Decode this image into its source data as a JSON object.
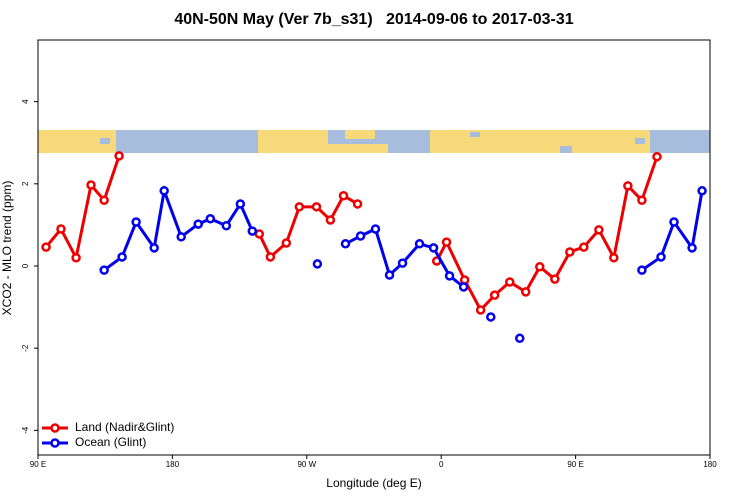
{
  "chart_data": {
    "type": "line",
    "title": "40N-50N May (Ver 7b_s31)   2014-09-06 to 2017-03-31",
    "x_label": "Longitude (deg E)",
    "y_label": "XCO2 - MLO trend (ppm)",
    "xlim": [
      90,
      540
    ],
    "xticks": [
      {
        "value": 90,
        "label": "90 E"
      },
      180,
      {
        "value": 270,
        "label": "90 W"
      },
      {
        "value": 360,
        "label": "0"
      },
      {
        "value": 450,
        "label": "90 E"
      },
      {
        "value": 540,
        "label": "180"
      }
    ],
    "ylim": [
      -4.6,
      5.5
    ],
    "yticks": [
      -4,
      -2,
      0,
      2,
      4
    ],
    "grid": false,
    "legend": "bottomleft",
    "series": [
      {
        "name": "Land (Nadir&Glint)",
        "color": "#ee0000",
        "x": [
          95.4,
          105.4,
          115.5,
          125.5,
          134.3,
          144.3,
          null,
          238.2,
          245.6,
          256.3,
          265.0,
          276.5,
          285.8,
          294.6,
          304.0,
          null,
          357.0,
          363.6,
          375.7,
          386.4,
          395.8,
          405.9,
          416.6,
          426.0,
          436.1,
          446.1,
          455.5,
          465.6,
          475.6,
          485.0,
          494.4,
          504.5
        ],
        "values": [
          0.46,
          0.9,
          0.2,
          1.97,
          1.6,
          2.68,
          null,
          0.78,
          0.22,
          0.56,
          1.44,
          1.44,
          1.12,
          1.71,
          1.51,
          null,
          0.12,
          0.58,
          -0.34,
          -1.07,
          -0.71,
          -0.39,
          -0.63,
          -0.02,
          -0.32,
          0.34,
          0.46,
          0.88,
          0.2,
          1.95,
          1.6,
          2.66
        ]
      },
      {
        "name": "Ocean (Glint)",
        "color": "#0000ee",
        "x": [
          134.3,
          146.3,
          155.7,
          167.8,
          174.5,
          185.9,
          197.3,
          205.4,
          216.1,
          225.5,
          233.5,
          null,
          277.1,
          null,
          295.9,
          306.0,
          316.0,
          325.4,
          334.1,
          345.5,
          354.9,
          365.6,
          375.0,
          null,
          393.2,
          null,
          412.6,
          null,
          494.4,
          507.2,
          515.9,
          528.0,
          534.7
        ],
        "values": [
          -0.1,
          0.22,
          1.07,
          0.44,
          1.83,
          0.71,
          1.02,
          1.15,
          0.98,
          1.51,
          0.85,
          null,
          0.05,
          null,
          0.54,
          0.73,
          0.9,
          -0.22,
          0.07,
          0.54,
          0.44,
          -0.24,
          -0.51,
          null,
          -1.24,
          null,
          -1.76,
          null,
          -0.1,
          0.22,
          1.07,
          0.44,
          1.83
        ]
      }
    ]
  }
}
